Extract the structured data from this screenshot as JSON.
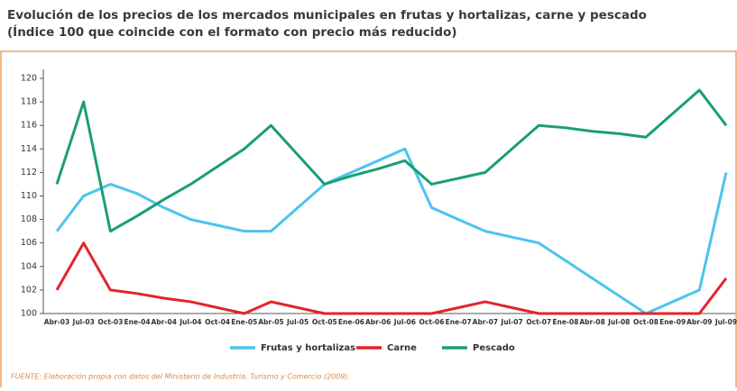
{
  "chart_data": {
    "type": "line",
    "title": "Evolución de los precios de los mercados municipales en frutas y hortalizas, carne y pescado",
    "subtitle": "(Índice 100 que coincide con el formato con precio más reducido)",
    "source": "FUENTE: Elaboración propia con datos del Ministerio de Industria, Turismo y Comercio (2009).",
    "categories": [
      "Abr-03",
      "Jul-03",
      "Oct-03",
      "Ene-04",
      "Abr-04",
      "Jul-04",
      "Oct-04",
      "Ene-05",
      "Abr-05",
      "Jul-05",
      "Oct-05",
      "Ene-06",
      "Abr-06",
      "Jul-06",
      "Oct-06",
      "Ene-07",
      "Abr-07",
      "Jul-07",
      "Oct-07",
      "Ene-08",
      "Abr-08",
      "Jul-08",
      "Oct-08",
      "Ene-09",
      "Abr-09",
      "Jul-09"
    ],
    "series": [
      {
        "name": "Frutas y hortalizas",
        "color": "#4cc4ee",
        "values": [
          107,
          110,
          111,
          110.2,
          109,
          108,
          107.5,
          107,
          107,
          109,
          111,
          112,
          113,
          114,
          109,
          108,
          107,
          106.5,
          106,
          104.5,
          103,
          101.5,
          100,
          101,
          102,
          112
        ]
      },
      {
        "name": "Carne",
        "color": "#e3242b",
        "values": [
          102,
          106,
          102,
          101.7,
          101.3,
          101,
          100.5,
          100,
          101,
          100.5,
          100,
          100,
          100,
          100,
          100,
          100.5,
          101,
          100.5,
          100,
          100,
          100,
          100,
          100,
          100,
          100,
          103
        ]
      },
      {
        "name": "Pescado",
        "color": "#1a9e74",
        "values": [
          111,
          118,
          107,
          108.3,
          109.7,
          111,
          112.5,
          114,
          116,
          113.5,
          111,
          111.7,
          112.3,
          113,
          111,
          111.5,
          112,
          114,
          116,
          115.8,
          115.5,
          115.3,
          115,
          117,
          119,
          116
        ]
      }
    ],
    "ylim": [
      100,
      120
    ],
    "yticks": [
      100,
      102,
      104,
      106,
      108,
      110,
      112,
      114,
      116,
      118,
      120
    ],
    "legend": "bottom"
  }
}
